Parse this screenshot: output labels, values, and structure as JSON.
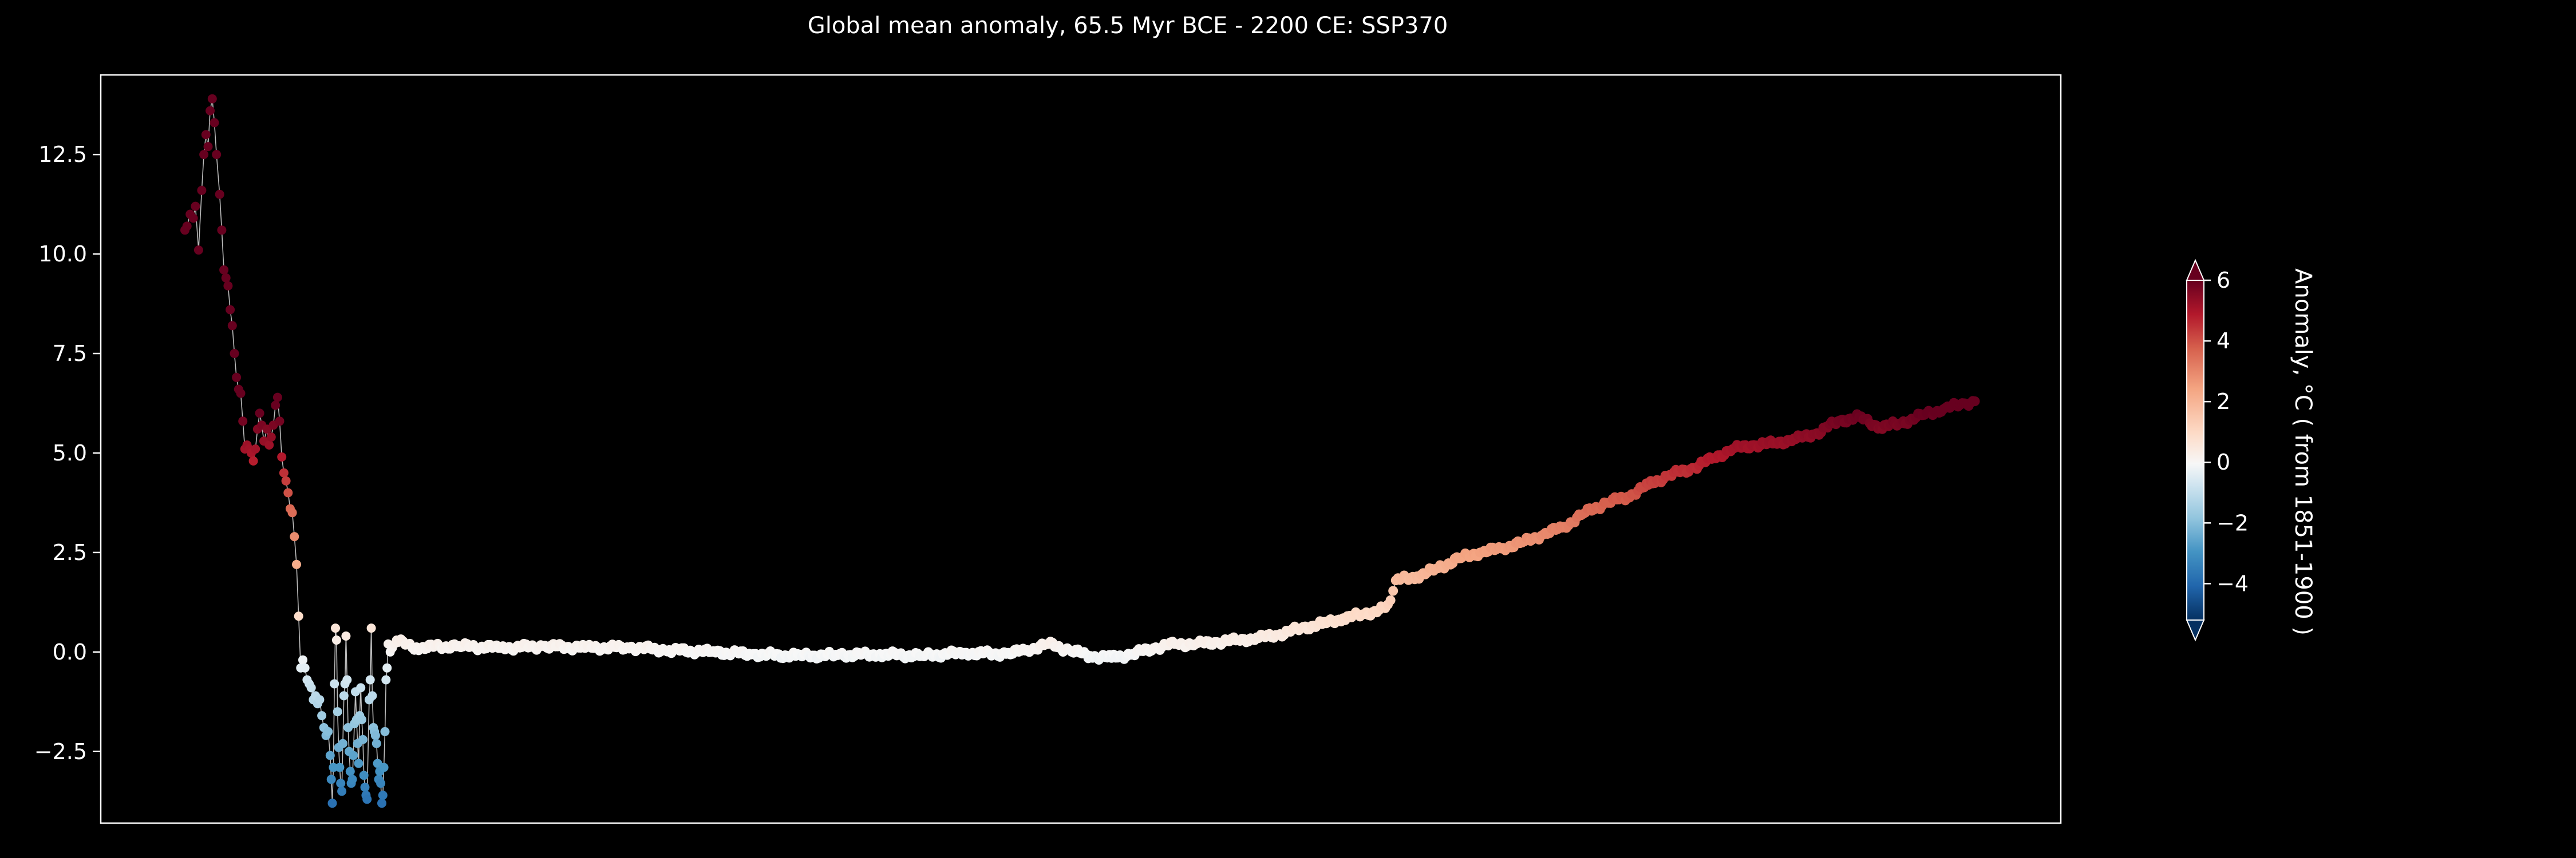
{
  "chart_data": {
    "type": "scatter",
    "title": "Global mean anomaly, 65.5 Myr BCE - 2200 CE: SSP370",
    "xlabel": "",
    "ylabel": "",
    "x_ticks_shown": false,
    "ylim": [
      -4.3,
      14.5
    ],
    "y_ticks": [
      -2.5,
      0.0,
      2.5,
      5.0,
      7.5,
      10.0,
      12.5
    ],
    "y_tick_labels": [
      "−2.5",
      "0.0",
      "2.5",
      "5.0",
      "7.5",
      "10.0",
      "12.5"
    ],
    "grid": false,
    "background": "#000000",
    "connecting_line_color": "#bbbbbb",
    "marker_colormap": "RdBu_r",
    "x_index_range": [
      0,
      1700
    ],
    "values_by_index": [
      [
        0,
        10.6
      ],
      [
        2,
        10.7
      ],
      [
        5,
        11.0
      ],
      [
        8,
        10.9
      ],
      [
        10,
        11.2
      ],
      [
        13,
        10.1
      ],
      [
        16,
        11.6
      ],
      [
        18,
        12.5
      ],
      [
        20,
        13.0
      ],
      [
        22,
        12.7
      ],
      [
        24,
        13.6
      ],
      [
        26,
        13.9
      ],
      [
        28,
        13.3
      ],
      [
        30,
        12.5
      ],
      [
        33,
        11.5
      ],
      [
        35,
        10.6
      ],
      [
        37,
        9.6
      ],
      [
        39,
        9.4
      ],
      [
        41,
        9.2
      ],
      [
        43,
        8.6
      ],
      [
        45,
        8.2
      ],
      [
        47,
        7.5
      ],
      [
        49,
        6.9
      ],
      [
        51,
        6.6
      ],
      [
        53,
        6.5
      ],
      [
        55,
        5.8
      ],
      [
        57,
        5.1
      ],
      [
        59,
        5.2
      ],
      [
        61,
        5.1
      ],
      [
        63,
        5.0
      ],
      [
        65,
        4.8
      ],
      [
        67,
        5.1
      ],
      [
        69,
        5.6
      ],
      [
        71,
        6.0
      ],
      [
        73,
        5.7
      ],
      [
        75,
        5.3
      ],
      [
        78,
        5.6
      ],
      [
        80,
        5.2
      ],
      [
        82,
        5.4
      ],
      [
        84,
        5.7
      ],
      [
        86,
        6.2
      ],
      [
        88,
        6.4
      ],
      [
        90,
        5.8
      ],
      [
        92,
        4.9
      ],
      [
        94,
        4.5
      ],
      [
        96,
        4.3
      ],
      [
        98,
        4.0
      ],
      [
        100,
        3.6
      ],
      [
        102,
        3.5
      ],
      [
        104,
        2.9
      ],
      [
        106,
        2.2
      ],
      [
        108,
        0.9
      ],
      [
        110,
        -0.4
      ],
      [
        112,
        -0.2
      ],
      [
        114,
        -0.4
      ],
      [
        116,
        -0.7
      ],
      [
        118,
        -0.8
      ],
      [
        120,
        -0.9
      ],
      [
        122,
        -1.2
      ],
      [
        124,
        -1.1
      ],
      [
        126,
        -1.3
      ],
      [
        128,
        -1.2
      ],
      [
        130,
        -1.6
      ],
      [
        132,
        -1.9
      ],
      [
        134,
        -2.1
      ],
      [
        136,
        -2.0
      ],
      [
        138,
        -2.6
      ],
      [
        139,
        -3.2
      ],
      [
        140,
        -3.8
      ],
      [
        141,
        -2.9
      ],
      [
        142,
        -0.8
      ],
      [
        143,
        0.6
      ],
      [
        144,
        0.3
      ],
      [
        145,
        -1.5
      ],
      [
        146,
        -2.4
      ],
      [
        147,
        -2.9
      ],
      [
        148,
        -3.3
      ],
      [
        149,
        -3.5
      ],
      [
        150,
        -2.3
      ],
      [
        151,
        -1.1
      ],
      [
        152,
        -0.8
      ],
      [
        153,
        0.4
      ],
      [
        154,
        -0.7
      ],
      [
        155,
        -1.9
      ],
      [
        156,
        -2.5
      ],
      [
        157,
        -3.0
      ],
      [
        158,
        -3.3
      ],
      [
        159,
        -3.2
      ],
      [
        160,
        -2.6
      ],
      [
        161,
        -1.8
      ],
      [
        162,
        -1.0
      ],
      [
        163,
        -1.7
      ],
      [
        164,
        -2.3
      ],
      [
        165,
        -2.8
      ],
      [
        166,
        -1.6
      ],
      [
        167,
        -0.9
      ],
      [
        168,
        -1.7
      ],
      [
        169,
        -2.2
      ],
      [
        170,
        -3.1
      ],
      [
        171,
        -3.4
      ],
      [
        172,
        -3.6
      ],
      [
        173,
        -3.7
      ],
      [
        175,
        -1.2
      ],
      [
        176,
        -0.7
      ],
      [
        177,
        0.6
      ],
      [
        178,
        -1.1
      ],
      [
        179,
        -1.9
      ],
      [
        180,
        -2.0
      ],
      [
        181,
        -2.1
      ],
      [
        182,
        -2.3
      ],
      [
        183,
        -2.8
      ],
      [
        184,
        -3.2
      ],
      [
        185,
        -3.0
      ],
      [
        186,
        -3.3
      ],
      [
        187,
        -3.8
      ],
      [
        188,
        -3.6
      ],
      [
        189,
        -2.9
      ],
      [
        190,
        -2.0
      ],
      [
        191,
        -0.7
      ],
      [
        192,
        -0.4
      ],
      [
        193,
        0.2
      ],
      [
        195,
        0.0
      ],
      [
        197,
        0.1
      ],
      [
        199,
        0.2
      ],
      [
        201,
        0.3
      ],
      [
        203,
        0.25
      ],
      [
        220,
        0.12
      ],
      [
        260,
        0.15
      ],
      [
        300,
        0.1
      ],
      [
        340,
        0.15
      ],
      [
        380,
        0.1
      ],
      [
        420,
        0.12
      ],
      [
        460,
        0.05
      ],
      [
        500,
        0.0
      ],
      [
        540,
        -0.05
      ],
      [
        580,
        -0.1
      ],
      [
        620,
        -0.08
      ],
      [
        660,
        -0.05
      ],
      [
        700,
        -0.1
      ],
      [
        740,
        -0.02
      ],
      [
        780,
        -0.05
      ],
      [
        800,
        0.05
      ],
      [
        820,
        0.2
      ],
      [
        840,
        0.05
      ],
      [
        860,
        -0.1
      ],
      [
        880,
        -0.15
      ],
      [
        900,
        -0.05
      ],
      [
        920,
        0.1
      ],
      [
        940,
        0.2
      ],
      [
        960,
        0.2
      ],
      [
        980,
        0.25
      ],
      [
        1000,
        0.3
      ],
      [
        1020,
        0.35
      ],
      [
        1040,
        0.45
      ],
      [
        1060,
        0.6
      ],
      [
        1080,
        0.7
      ],
      [
        1100,
        0.85
      ],
      [
        1120,
        0.95
      ],
      [
        1140,
        1.1
      ],
      [
        1145,
        1.3
      ],
      [
        1150,
        1.8
      ],
      [
        1170,
        1.9
      ],
      [
        1190,
        2.1
      ],
      [
        1210,
        2.35
      ],
      [
        1230,
        2.5
      ],
      [
        1250,
        2.6
      ],
      [
        1270,
        2.75
      ],
      [
        1290,
        2.95
      ],
      [
        1310,
        3.15
      ],
      [
        1330,
        3.5
      ],
      [
        1350,
        3.75
      ],
      [
        1370,
        3.9
      ],
      [
        1390,
        4.2
      ],
      [
        1410,
        4.45
      ],
      [
        1430,
        4.6
      ],
      [
        1450,
        4.85
      ],
      [
        1470,
        5.1
      ],
      [
        1490,
        5.2
      ],
      [
        1510,
        5.25
      ],
      [
        1530,
        5.35
      ],
      [
        1550,
        5.5
      ],
      [
        1570,
        5.8
      ],
      [
        1590,
        5.9
      ],
      [
        1610,
        5.65
      ],
      [
        1630,
        5.75
      ],
      [
        1650,
        5.95
      ],
      [
        1670,
        6.1
      ],
      [
        1690,
        6.25
      ],
      [
        1700,
        6.3
      ]
    ],
    "colorbar": {
      "label": "Anomaly, °C ( from 1851-1900 )",
      "range": [
        -5.2,
        6.0
      ],
      "ticks": [
        -4,
        -2,
        0,
        2,
        4,
        6
      ],
      "tick_labels": [
        "−4",
        "−2",
        "0",
        "2",
        "4",
        "6"
      ],
      "extend": "both"
    }
  }
}
